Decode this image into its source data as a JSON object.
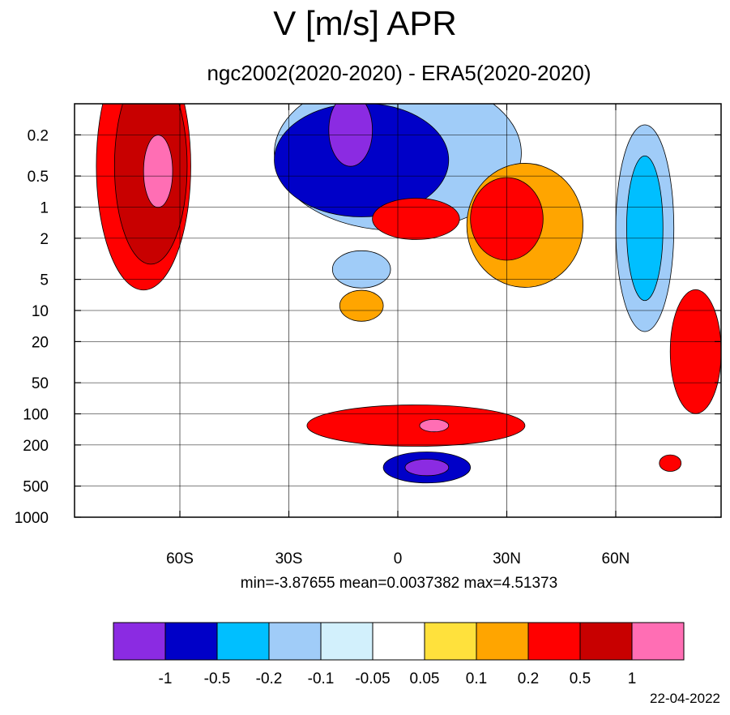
{
  "header": {
    "title": "V [m/s] APR",
    "subtitle": "ngc2002(2020-2020) - ERA5(2020-2020)"
  },
  "stats": {
    "text": "min=-3.87655   mean=0.0037382   max=4.51373"
  },
  "footer": {
    "date": "22-04-2022"
  },
  "chart_data": {
    "type": "heatmap",
    "title": "V [m/s] APR",
    "subtitle": "ngc2002(2020-2020) - ERA5(2020-2020)",
    "x_axis": {
      "ticks": [
        {
          "value": -60,
          "label": "60S"
        },
        {
          "value": -30,
          "label": "30S"
        },
        {
          "value": 0,
          "label": "0"
        },
        {
          "value": 30,
          "label": "30N"
        },
        {
          "value": 60,
          "label": "60N"
        }
      ],
      "range": [
        -89,
        89
      ]
    },
    "y_axis": {
      "scale": "log",
      "reversed": true,
      "ticks": [
        0.2,
        0.5,
        1,
        2,
        5,
        10,
        20,
        50,
        100,
        200,
        500,
        1000
      ],
      "tick_labels": [
        "0.2",
        "0.5",
        "1",
        "2",
        "5",
        "10",
        "20",
        "50",
        "100",
        "200",
        "500",
        "1000"
      ],
      "range": [
        0.1,
        1000
      ]
    },
    "grid": true,
    "colorbar": {
      "levels": [
        "-1",
        "-0.5",
        "-0.2",
        "-0.1",
        "-0.05",
        "0.05",
        "0.1",
        "0.2",
        "0.5",
        "1"
      ],
      "colors": [
        "#8b2be2",
        "#0000c8",
        "#00bfff",
        "#a0ccf8",
        "#d2f0fc",
        "#ffffff",
        "#ffe13c",
        "#ffa500",
        "#ff0000",
        "#c80000",
        "#ff6eb4"
      ]
    },
    "stats": {
      "min": -3.87655,
      "mean": 0.0037382,
      "max": 4.51373
    },
    "regions": [
      {
        "lat": -70,
        "p": 0.4,
        "level": 8,
        "r_lat": 13,
        "r_dec": 1.2
      },
      {
        "lat": -68,
        "p": 0.4,
        "level": 9,
        "r_lat": 10,
        "r_dec": 0.95
      },
      {
        "lat": -66,
        "p": 0.45,
        "level": 10,
        "r_lat": 4,
        "r_dec": 0.35
      },
      {
        "lat": 0,
        "p": 0.3,
        "level": 3,
        "r_lat": 34,
        "r_dec": 0.75
      },
      {
        "lat": -10,
        "p": 0.35,
        "level": 1,
        "r_lat": 24,
        "r_dec": 0.55
      },
      {
        "lat": -13,
        "p": 0.18,
        "level": 0,
        "r_lat": 6,
        "r_dec": 0.35
      },
      {
        "lat": 68,
        "p": 1.6,
        "level": 3,
        "r_lat": 8,
        "r_dec": 1.0
      },
      {
        "lat": 68,
        "p": 1.6,
        "level": 2,
        "r_lat": 5,
        "r_dec": 0.7
      },
      {
        "lat": 5,
        "p": 1.3,
        "level": 8,
        "r_lat": 12,
        "r_dec": 0.2
      },
      {
        "lat": 35,
        "p": 1.5,
        "level": 7,
        "r_lat": 16,
        "r_dec": 0.6
      },
      {
        "lat": 30,
        "p": 1.3,
        "level": 8,
        "r_lat": 10,
        "r_dec": 0.4
      },
      {
        "lat": 82,
        "p": 25,
        "level": 8,
        "r_lat": 7,
        "r_dec": 0.6
      },
      {
        "lat": -10,
        "p": 9,
        "level": 7,
        "r_lat": 6,
        "r_dec": 0.15
      },
      {
        "lat": 5,
        "p": 130,
        "level": 8,
        "r_lat": 30,
        "r_dec": 0.2
      },
      {
        "lat": 10,
        "p": 130,
        "level": 10,
        "r_lat": 4,
        "r_dec": 0.06
      },
      {
        "lat": 8,
        "p": 330,
        "level": 1,
        "r_lat": 12,
        "r_dec": 0.15
      },
      {
        "lat": 8,
        "p": 330,
        "level": 0,
        "r_lat": 6,
        "r_dec": 0.08
      },
      {
        "lat": -10,
        "p": 4,
        "level": 3,
        "r_lat": 8,
        "r_dec": 0.18
      },
      {
        "lat": 75,
        "p": 300,
        "level": 8,
        "r_lat": 3,
        "r_dec": 0.08
      }
    ]
  }
}
